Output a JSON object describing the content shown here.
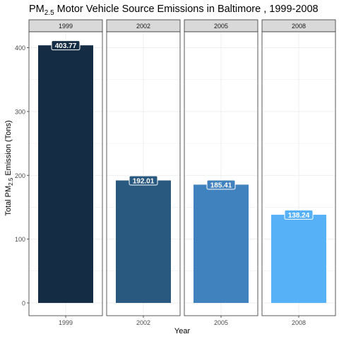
{
  "chart_data": {
    "type": "bar",
    "title_prefix": "PM",
    "title_subscript": "2.5",
    "title_suffix": " Motor Vehicle Source Emissions in Baltimore , 1999-2008",
    "xlabel": "Year",
    "ylabel_prefix": "Total PM",
    "ylabel_subscript": "2.5",
    "ylabel_suffix": " Emission (Tons)",
    "ylim": [
      -20,
      425
    ],
    "yticks": [
      0,
      100,
      200,
      300,
      400
    ],
    "grid": true,
    "facets": [
      {
        "strip": "1999",
        "category": "1999",
        "value": 403.77,
        "label": "403.77",
        "color": "#152C45"
      },
      {
        "strip": "2002",
        "category": "2002",
        "value": 192.01,
        "label": "192.01",
        "color": "#2A597F"
      },
      {
        "strip": "2005",
        "category": "2005",
        "value": 185.41,
        "label": "185.41",
        "color": "#4082BE"
      },
      {
        "strip": "2008",
        "category": "2008",
        "value": 138.24,
        "label": "138.24",
        "color": "#56B1F7"
      }
    ]
  }
}
